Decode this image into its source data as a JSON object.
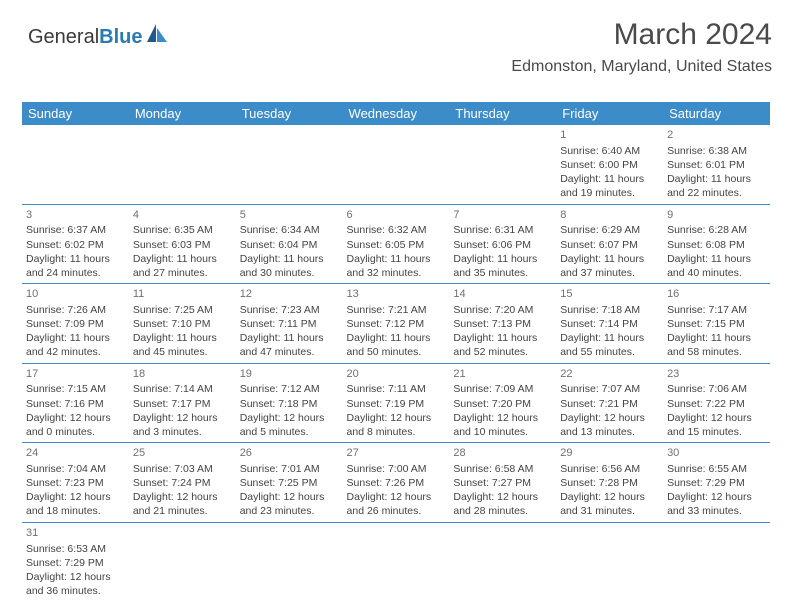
{
  "logo": {
    "text1": "General",
    "text2": "Blue"
  },
  "title": "March 2024",
  "location": "Edmonston, Maryland, United States",
  "colors": {
    "header_bg": "#3b8cc9",
    "header_text": "#ffffff",
    "border": "#3b8cc9",
    "daynum": "#707070",
    "cell_text": "#444444",
    "logo_blue": "#2a7ab8",
    "logo_gray": "#3a3a3a"
  },
  "weekdays": [
    "Sunday",
    "Monday",
    "Tuesday",
    "Wednesday",
    "Thursday",
    "Friday",
    "Saturday"
  ],
  "weeks": [
    [
      null,
      null,
      null,
      null,
      null,
      {
        "n": "1",
        "sr": "Sunrise: 6:40 AM",
        "ss": "Sunset: 6:00 PM",
        "dl": "Daylight: 11 hours and 19 minutes."
      },
      {
        "n": "2",
        "sr": "Sunrise: 6:38 AM",
        "ss": "Sunset: 6:01 PM",
        "dl": "Daylight: 11 hours and 22 minutes."
      }
    ],
    [
      {
        "n": "3",
        "sr": "Sunrise: 6:37 AM",
        "ss": "Sunset: 6:02 PM",
        "dl": "Daylight: 11 hours and 24 minutes."
      },
      {
        "n": "4",
        "sr": "Sunrise: 6:35 AM",
        "ss": "Sunset: 6:03 PM",
        "dl": "Daylight: 11 hours and 27 minutes."
      },
      {
        "n": "5",
        "sr": "Sunrise: 6:34 AM",
        "ss": "Sunset: 6:04 PM",
        "dl": "Daylight: 11 hours and 30 minutes."
      },
      {
        "n": "6",
        "sr": "Sunrise: 6:32 AM",
        "ss": "Sunset: 6:05 PM",
        "dl": "Daylight: 11 hours and 32 minutes."
      },
      {
        "n": "7",
        "sr": "Sunrise: 6:31 AM",
        "ss": "Sunset: 6:06 PM",
        "dl": "Daylight: 11 hours and 35 minutes."
      },
      {
        "n": "8",
        "sr": "Sunrise: 6:29 AM",
        "ss": "Sunset: 6:07 PM",
        "dl": "Daylight: 11 hours and 37 minutes."
      },
      {
        "n": "9",
        "sr": "Sunrise: 6:28 AM",
        "ss": "Sunset: 6:08 PM",
        "dl": "Daylight: 11 hours and 40 minutes."
      }
    ],
    [
      {
        "n": "10",
        "sr": "Sunrise: 7:26 AM",
        "ss": "Sunset: 7:09 PM",
        "dl": "Daylight: 11 hours and 42 minutes."
      },
      {
        "n": "11",
        "sr": "Sunrise: 7:25 AM",
        "ss": "Sunset: 7:10 PM",
        "dl": "Daylight: 11 hours and 45 minutes."
      },
      {
        "n": "12",
        "sr": "Sunrise: 7:23 AM",
        "ss": "Sunset: 7:11 PM",
        "dl": "Daylight: 11 hours and 47 minutes."
      },
      {
        "n": "13",
        "sr": "Sunrise: 7:21 AM",
        "ss": "Sunset: 7:12 PM",
        "dl": "Daylight: 11 hours and 50 minutes."
      },
      {
        "n": "14",
        "sr": "Sunrise: 7:20 AM",
        "ss": "Sunset: 7:13 PM",
        "dl": "Daylight: 11 hours and 52 minutes."
      },
      {
        "n": "15",
        "sr": "Sunrise: 7:18 AM",
        "ss": "Sunset: 7:14 PM",
        "dl": "Daylight: 11 hours and 55 minutes."
      },
      {
        "n": "16",
        "sr": "Sunrise: 7:17 AM",
        "ss": "Sunset: 7:15 PM",
        "dl": "Daylight: 11 hours and 58 minutes."
      }
    ],
    [
      {
        "n": "17",
        "sr": "Sunrise: 7:15 AM",
        "ss": "Sunset: 7:16 PM",
        "dl": "Daylight: 12 hours and 0 minutes."
      },
      {
        "n": "18",
        "sr": "Sunrise: 7:14 AM",
        "ss": "Sunset: 7:17 PM",
        "dl": "Daylight: 12 hours and 3 minutes."
      },
      {
        "n": "19",
        "sr": "Sunrise: 7:12 AM",
        "ss": "Sunset: 7:18 PM",
        "dl": "Daylight: 12 hours and 5 minutes."
      },
      {
        "n": "20",
        "sr": "Sunrise: 7:11 AM",
        "ss": "Sunset: 7:19 PM",
        "dl": "Daylight: 12 hours and 8 minutes."
      },
      {
        "n": "21",
        "sr": "Sunrise: 7:09 AM",
        "ss": "Sunset: 7:20 PM",
        "dl": "Daylight: 12 hours and 10 minutes."
      },
      {
        "n": "22",
        "sr": "Sunrise: 7:07 AM",
        "ss": "Sunset: 7:21 PM",
        "dl": "Daylight: 12 hours and 13 minutes."
      },
      {
        "n": "23",
        "sr": "Sunrise: 7:06 AM",
        "ss": "Sunset: 7:22 PM",
        "dl": "Daylight: 12 hours and 15 minutes."
      }
    ],
    [
      {
        "n": "24",
        "sr": "Sunrise: 7:04 AM",
        "ss": "Sunset: 7:23 PM",
        "dl": "Daylight: 12 hours and 18 minutes."
      },
      {
        "n": "25",
        "sr": "Sunrise: 7:03 AM",
        "ss": "Sunset: 7:24 PM",
        "dl": "Daylight: 12 hours and 21 minutes."
      },
      {
        "n": "26",
        "sr": "Sunrise: 7:01 AM",
        "ss": "Sunset: 7:25 PM",
        "dl": "Daylight: 12 hours and 23 minutes."
      },
      {
        "n": "27",
        "sr": "Sunrise: 7:00 AM",
        "ss": "Sunset: 7:26 PM",
        "dl": "Daylight: 12 hours and 26 minutes."
      },
      {
        "n": "28",
        "sr": "Sunrise: 6:58 AM",
        "ss": "Sunset: 7:27 PM",
        "dl": "Daylight: 12 hours and 28 minutes."
      },
      {
        "n": "29",
        "sr": "Sunrise: 6:56 AM",
        "ss": "Sunset: 7:28 PM",
        "dl": "Daylight: 12 hours and 31 minutes."
      },
      {
        "n": "30",
        "sr": "Sunrise: 6:55 AM",
        "ss": "Sunset: 7:29 PM",
        "dl": "Daylight: 12 hours and 33 minutes."
      }
    ],
    [
      {
        "n": "31",
        "sr": "Sunrise: 6:53 AM",
        "ss": "Sunset: 7:29 PM",
        "dl": "Daylight: 12 hours and 36 minutes."
      },
      null,
      null,
      null,
      null,
      null,
      null
    ]
  ]
}
